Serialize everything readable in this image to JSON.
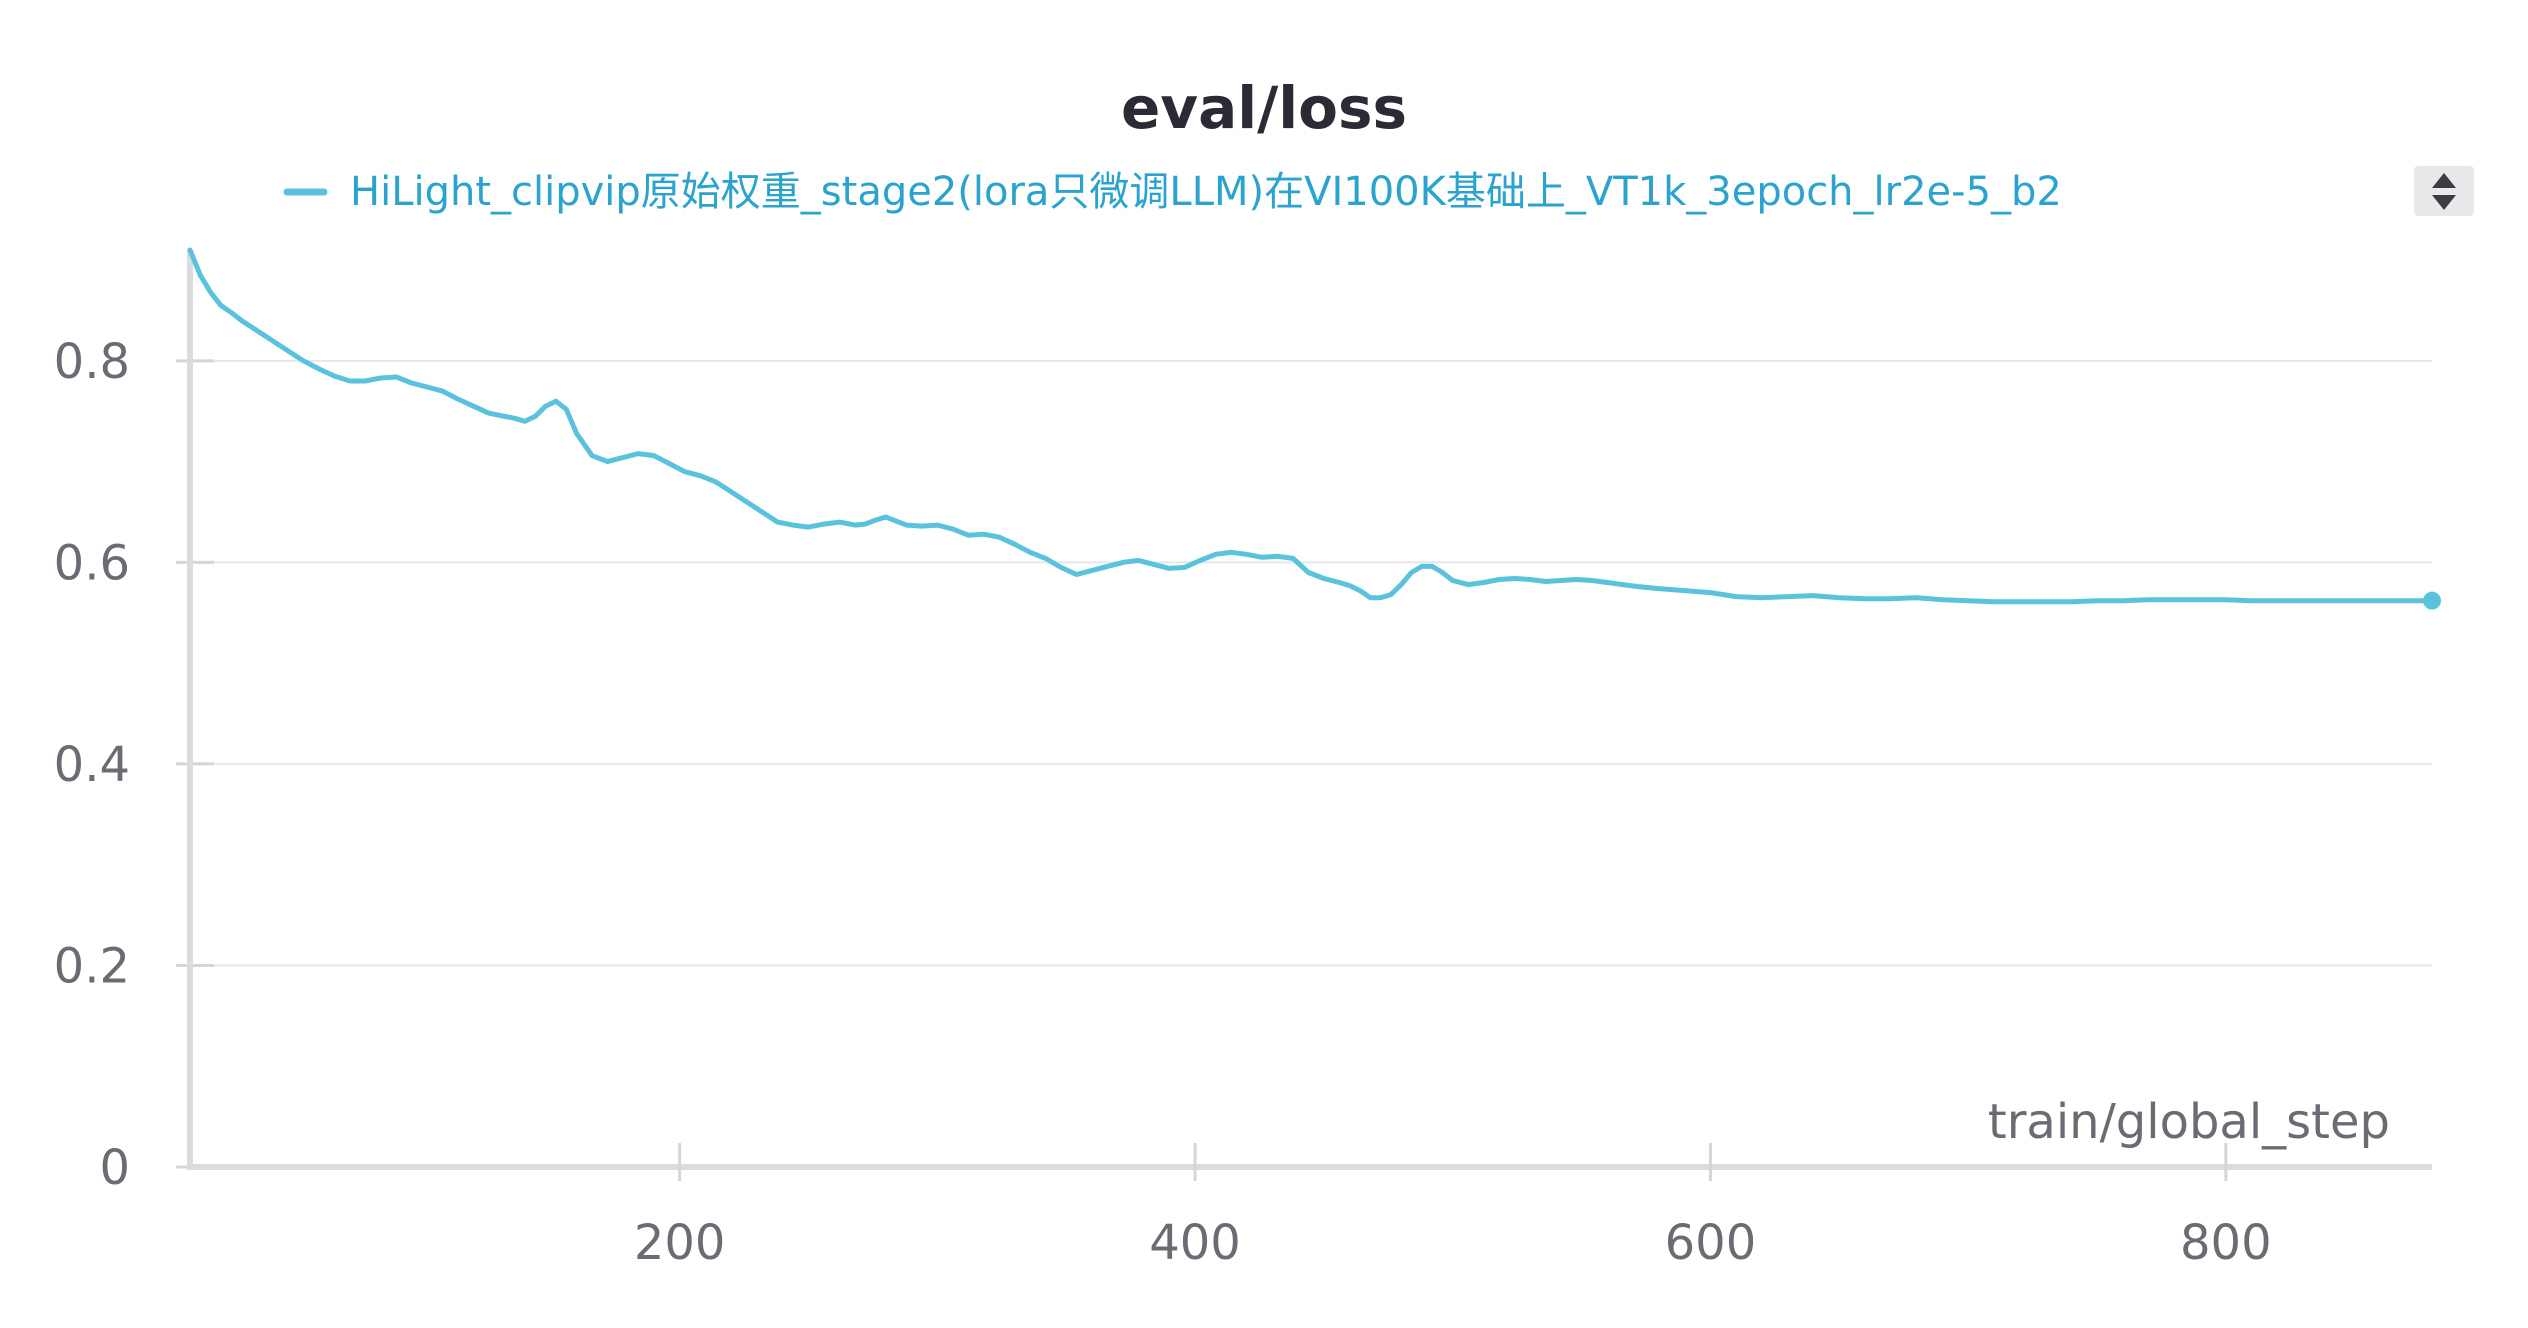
{
  "chart_data": {
    "type": "line",
    "title": "eval/loss",
    "xlabel": "train/global_step",
    "ylabel": "",
    "xlim": [
      10,
      880
    ],
    "ylim": [
      0,
      0.91
    ],
    "grid": true,
    "legend_position": "top",
    "x_ticks": [
      200,
      400,
      600,
      800
    ],
    "y_ticks": [
      0,
      0.2,
      0.4,
      0.6,
      0.8
    ],
    "x_tick_labels": [
      "200",
      "400",
      "600",
      "800"
    ],
    "y_tick_labels": [
      "0",
      "0.2",
      "0.4",
      "0.6",
      "0.8"
    ],
    "series": [
      {
        "name": "HiLight_clipvip原始权重_stage2(lora只微调LLM)在VI100K基础上_VT1k_3epoch_lr2e-5_b2",
        "color": "#5bc2dd",
        "x": [
          10,
          14,
          18,
          22,
          26,
          30,
          36,
          42,
          48,
          54,
          60,
          66,
          72,
          78,
          84,
          90,
          96,
          102,
          108,
          114,
          120,
          126,
          132,
          136,
          140,
          144,
          148,
          152,
          156,
          160,
          166,
          172,
          178,
          184,
          190,
          196,
          202,
          208,
          214,
          220,
          226,
          232,
          238,
          244,
          250,
          256,
          262,
          268,
          272,
          276,
          280,
          284,
          288,
          294,
          300,
          306,
          312,
          318,
          324,
          330,
          336,
          342,
          348,
          354,
          360,
          366,
          372,
          378,
          384,
          390,
          396,
          402,
          408,
          414,
          420,
          426,
          432,
          438,
          444,
          450,
          456,
          460,
          464,
          468,
          472,
          476,
          480,
          484,
          488,
          492,
          496,
          500,
          506,
          512,
          518,
          524,
          530,
          536,
          542,
          548,
          554,
          560,
          566,
          572,
          580,
          590,
          600,
          610,
          620,
          630,
          640,
          650,
          660,
          670,
          680,
          690,
          700,
          710,
          720,
          730,
          740,
          750,
          760,
          770,
          780,
          790,
          800,
          810,
          820,
          830,
          840,
          850,
          860,
          870,
          880
        ],
        "values": [
          0.91,
          0.885,
          0.868,
          0.855,
          0.848,
          0.84,
          0.83,
          0.82,
          0.81,
          0.8,
          0.792,
          0.785,
          0.78,
          0.78,
          0.783,
          0.784,
          0.778,
          0.774,
          0.77,
          0.762,
          0.755,
          0.748,
          0.745,
          0.743,
          0.74,
          0.745,
          0.755,
          0.76,
          0.752,
          0.728,
          0.706,
          0.7,
          0.704,
          0.708,
          0.706,
          0.698,
          0.69,
          0.686,
          0.68,
          0.67,
          0.66,
          0.65,
          0.64,
          0.637,
          0.635,
          0.638,
          0.64,
          0.637,
          0.638,
          0.642,
          0.645,
          0.641,
          0.637,
          0.636,
          0.637,
          0.633,
          0.627,
          0.628,
          0.625,
          0.618,
          0.61,
          0.604,
          0.595,
          0.588,
          0.592,
          0.596,
          0.6,
          0.602,
          0.598,
          0.594,
          0.595,
          0.602,
          0.608,
          0.61,
          0.608,
          0.605,
          0.606,
          0.604,
          0.59,
          0.584,
          0.58,
          0.577,
          0.572,
          0.565,
          0.565,
          0.568,
          0.578,
          0.59,
          0.596,
          0.596,
          0.59,
          0.582,
          0.578,
          0.58,
          0.583,
          0.584,
          0.583,
          0.581,
          0.582,
          0.583,
          0.582,
          0.58,
          0.578,
          0.576,
          0.574,
          0.572,
          0.57,
          0.566,
          0.565,
          0.566,
          0.567,
          0.565,
          0.564,
          0.564,
          0.565,
          0.563,
          0.562,
          0.561,
          0.561,
          0.561,
          0.561,
          0.562,
          0.562,
          0.563,
          0.563,
          0.563,
          0.563,
          0.562,
          0.562,
          0.562,
          0.562,
          0.562,
          0.562,
          0.562,
          0.562
        ]
      }
    ]
  }
}
